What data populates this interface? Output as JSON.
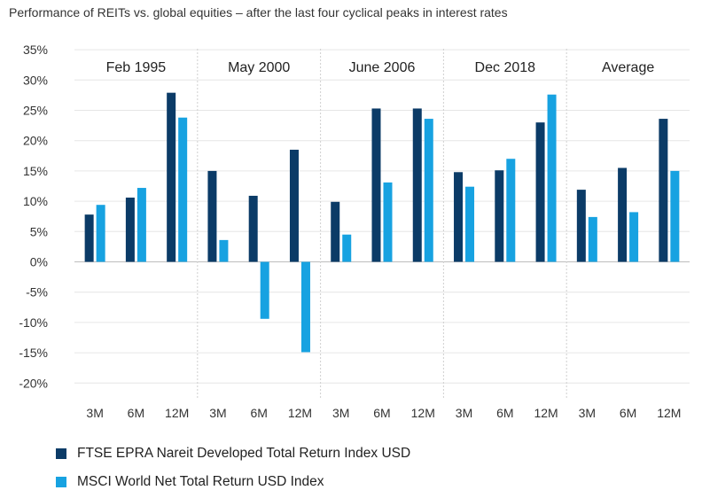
{
  "chart_data": {
    "type": "bar",
    "title": "Performance of REITs vs. global equities – after the last four cyclical peaks in interest rates",
    "y_ticks": [
      "35%",
      "30%",
      "25%",
      "20%",
      "15%",
      "10%",
      "5%",
      "0%",
      "-5%",
      "-10%",
      "-15%",
      "-20%"
    ],
    "ylim": [
      -20,
      35
    ],
    "grid": true,
    "legend_position": "bottom-left",
    "groups": [
      "Feb 1995",
      "May 2000",
      "June 2006",
      "Dec 2018",
      "Average"
    ],
    "categories": [
      "3M",
      "6M",
      "12M",
      "3M",
      "6M",
      "12M",
      "3M",
      "6M",
      "12M",
      "3M",
      "6M",
      "12M",
      "3M",
      "6M",
      "12M"
    ],
    "series": [
      {
        "name": "FTSE EPRA Nareit Developed Total Return Index USD",
        "color": "#0b3b67",
        "values": [
          7.8,
          10.6,
          27.9,
          15.0,
          10.9,
          18.5,
          9.9,
          25.3,
          25.3,
          14.8,
          15.1,
          23.0,
          11.9,
          15.5,
          23.6
        ]
      },
      {
        "name": "MSCI World Net Total Return USD Index",
        "color": "#17a2e1",
        "values": [
          9.4,
          12.2,
          23.8,
          3.6,
          -9.4,
          -14.9,
          4.5,
          13.1,
          23.6,
          12.4,
          17.0,
          27.6,
          7.4,
          8.2,
          15.0
        ]
      }
    ]
  }
}
